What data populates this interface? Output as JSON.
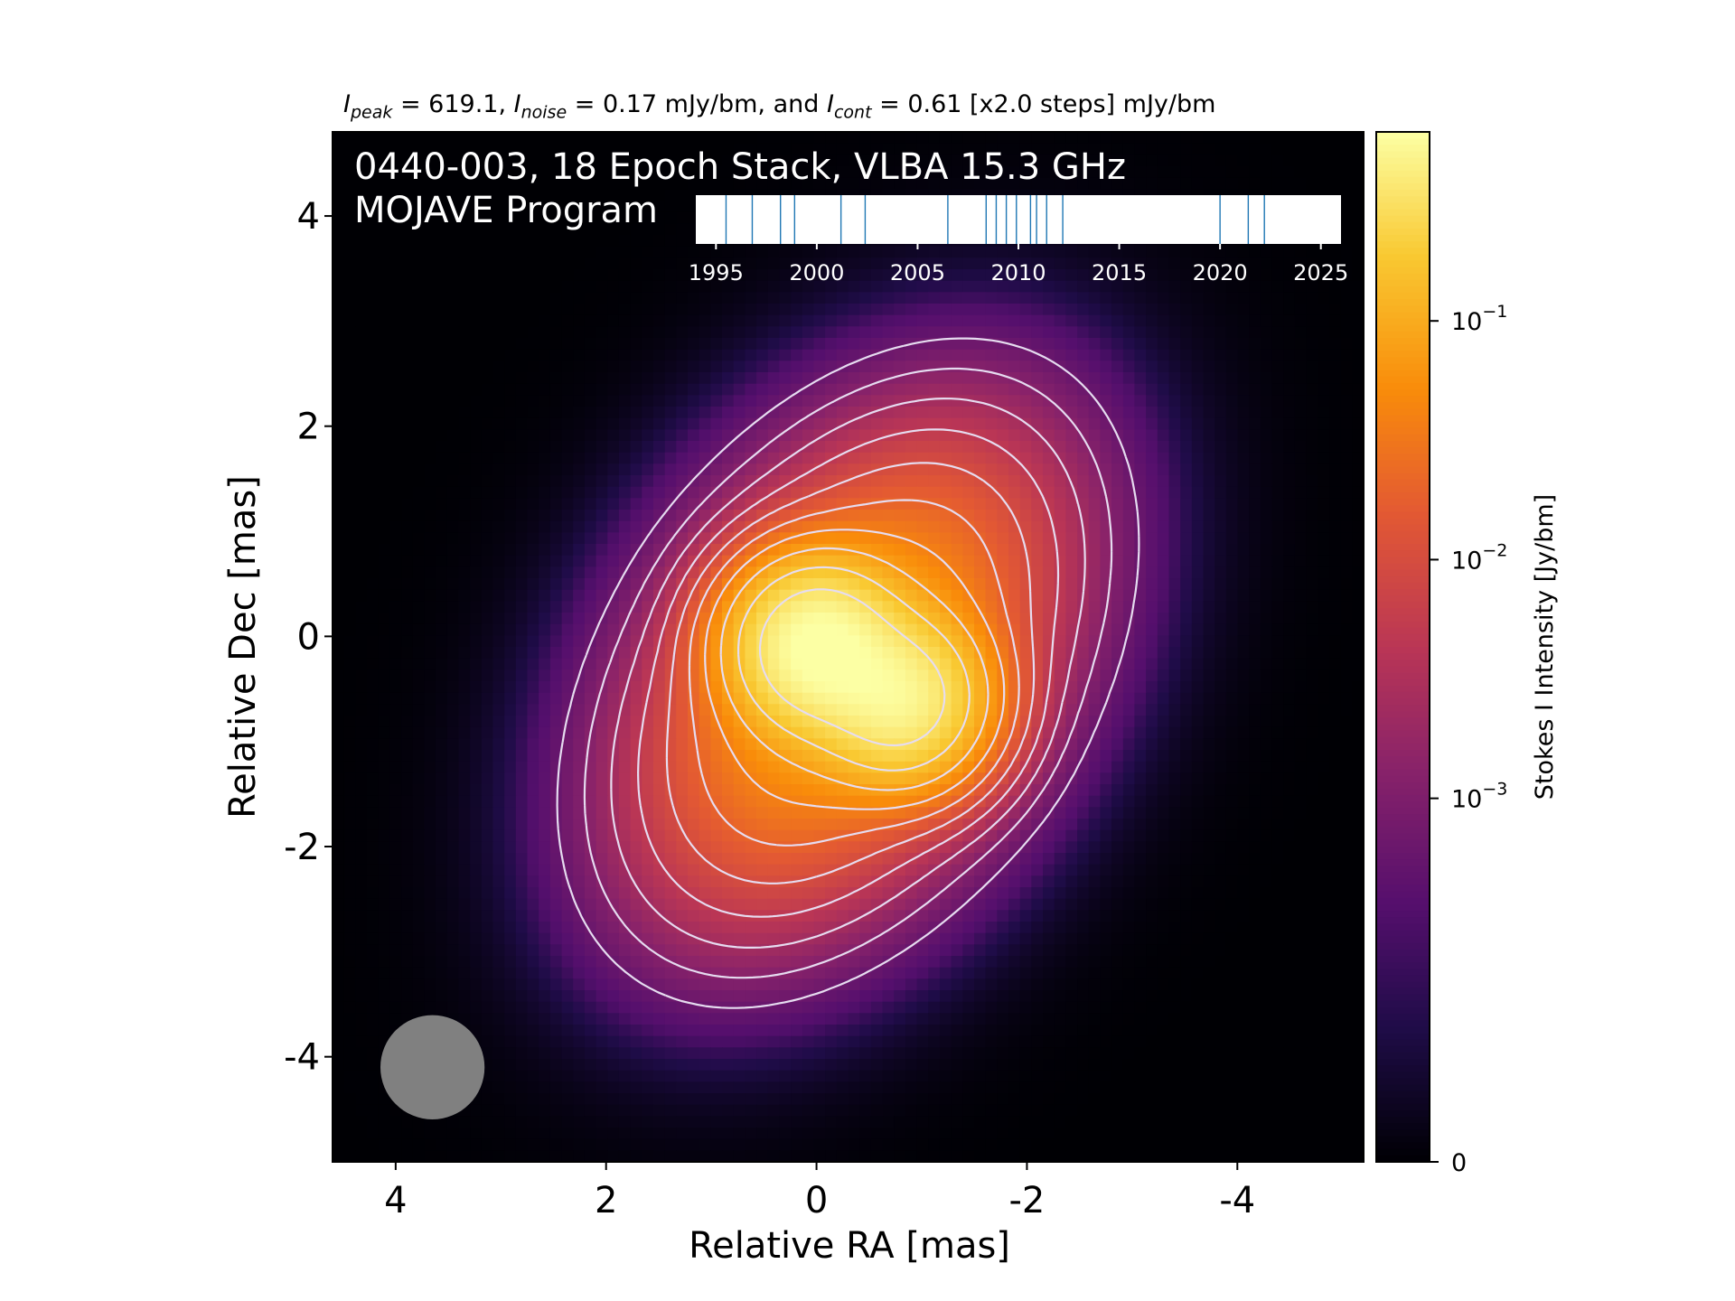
{
  "header": {
    "peak_label": "I",
    "peak_sub": "peak",
    "peak_value": "619.1",
    "noise_label": "I",
    "noise_sub": "noise",
    "noise_value": "0.17 mJy/bm, and",
    "cont_label": "I",
    "cont_sub": "cont",
    "cont_value": "0.61 [x2.0 steps] mJy/bm"
  },
  "overlay": {
    "line1": "0440-003, 18 Epoch Stack, VLBA 15.3 GHz",
    "line2": "MOJAVE Program"
  },
  "colors": {
    "colormap": "inferno",
    "contour": "#e6dcf0",
    "beam": "#808080",
    "epoch_line": "#1f77b4"
  },
  "chart_data": [
    {
      "type": "heatmap",
      "title": "",
      "xlabel": "Relative RA [mas]",
      "ylabel": "Relative Dec [mas]",
      "xlim": [
        4.6,
        -5.2
      ],
      "ylim": [
        -5.0,
        4.8
      ],
      "x_ticks": [
        4,
        2,
        0,
        -2,
        -4
      ],
      "x_tick_labels": [
        "4",
        "2",
        "0",
        "-2",
        "-4"
      ],
      "y_ticks": [
        4,
        2,
        0,
        -2,
        -4
      ],
      "y_tick_labels": [
        "4",
        "2",
        "0",
        "-2",
        "-4"
      ],
      "x_inverted": true,
      "grid": false,
      "peak_Jy_per_bm": 0.6191,
      "noise_mJy_per_bm": 0.17,
      "lowest_contour_mJy_per_bm": 0.61,
      "contour_step_factor": 2.0,
      "contour_levels_mJy_per_bm": [
        0.61,
        1.22,
        2.44,
        4.88,
        9.76,
        19.52,
        39.04,
        78.08,
        156.16,
        312.32
      ],
      "source_model": {
        "components": [
          {
            "ra": 0.0,
            "dec": -0.1,
            "peak_Jy": 0.62
          },
          {
            "ra": -0.8,
            "dec": -0.6,
            "peak_Jy": 0.45
          }
        ],
        "extension_pa_deg": 125
      },
      "beam": {
        "ra": 3.65,
        "dec": -4.1,
        "major_mas": 0.9,
        "minor_mas": 0.9,
        "pa_deg": 0
      }
    },
    {
      "type": "scatter",
      "title": "",
      "xlim": [
        1994,
        2026
      ],
      "x_ticks": [
        1995,
        2000,
        2005,
        2010,
        2015,
        2020,
        2025
      ],
      "x_tick_labels": [
        "1995",
        "2000",
        "2005",
        "2010",
        "2015",
        "2020",
        "2025"
      ],
      "epochs": [
        1995.5,
        1996.8,
        1998.2,
        1998.9,
        2001.2,
        2002.4,
        2006.5,
        2008.4,
        2008.9,
        2009.4,
        2009.9,
        2010.6,
        2010.9,
        2011.4,
        2012.2,
        2020.0,
        2021.4,
        2022.2
      ]
    },
    {
      "type": "colorbar",
      "label": "Stokes I Intensity [Jy/bm]",
      "scale": "symlog",
      "range": [
        0,
        0.6191
      ],
      "ticks": [
        0,
        0.001,
        0.01,
        0.1
      ],
      "tick_labels": [
        "0",
        "10",
        "10",
        "10"
      ],
      "tick_exponents": [
        "",
        "−3",
        "−2",
        "−1"
      ]
    }
  ]
}
